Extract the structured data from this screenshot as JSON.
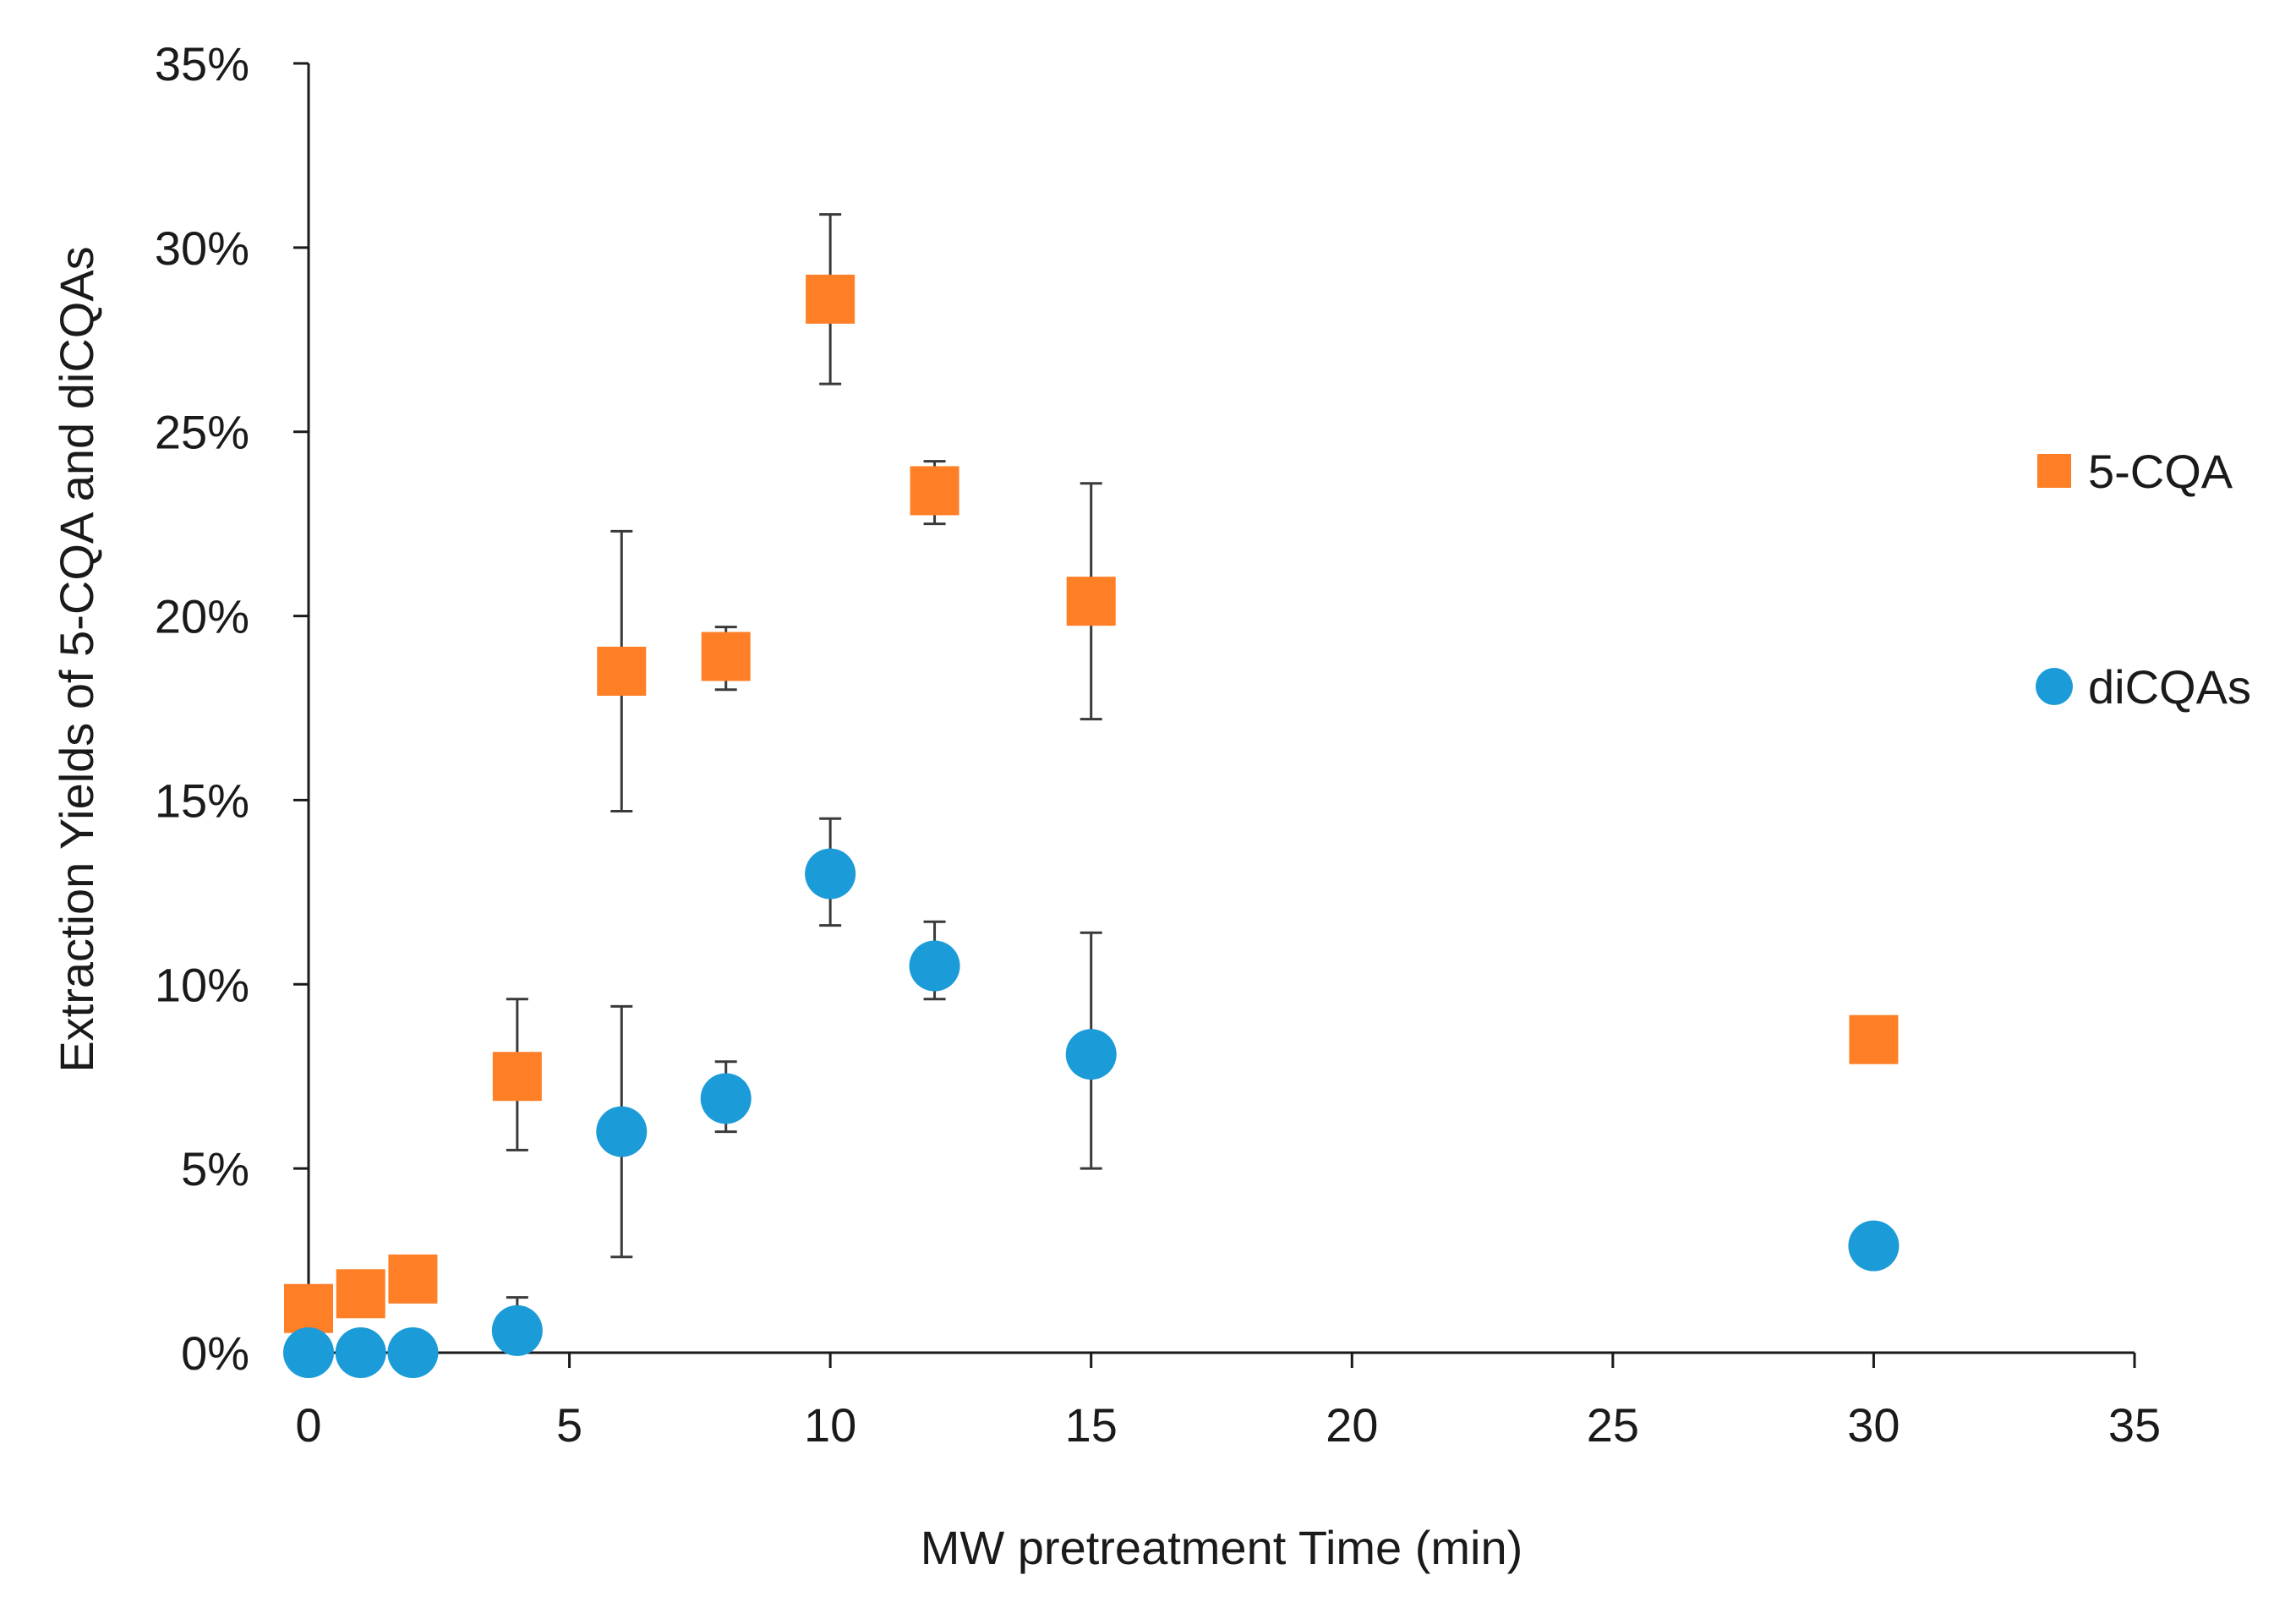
{
  "chart_data": {
    "type": "scatter",
    "title": "",
    "xlabel": "MW pretreatment Time (min)",
    "ylabel": "Extraction Yields of 5-CQA and diCQAs",
    "xlim": [
      0,
      35
    ],
    "ylim": [
      0,
      0.35
    ],
    "x_ticks": [
      0,
      5,
      10,
      15,
      20,
      25,
      30,
      35
    ],
    "y_ticks": [
      0,
      0.05,
      0.1,
      0.15,
      0.2,
      0.25,
      0.3,
      0.35
    ],
    "y_tick_labels": [
      "0%",
      "5%",
      "10%",
      "15%",
      "20%",
      "25%",
      "30%",
      "35%"
    ],
    "grid": false,
    "legend_position": "right",
    "series": [
      {
        "name": "5-CQA",
        "marker": "square",
        "color": "#FF7F27",
        "points": [
          {
            "x": 0,
            "y": 0.012,
            "err_low": null,
            "err_high": null
          },
          {
            "x": 1,
            "y": 0.016,
            "err_low": null,
            "err_high": null
          },
          {
            "x": 2,
            "y": 0.02,
            "err_low": null,
            "err_high": null
          },
          {
            "x": 4,
            "y": 0.075,
            "err_low": 0.055,
            "err_high": 0.096
          },
          {
            "x": 6,
            "y": 0.185,
            "err_low": 0.147,
            "err_high": 0.223
          },
          {
            "x": 8,
            "y": 0.189,
            "err_low": 0.18,
            "err_high": 0.197
          },
          {
            "x": 10,
            "y": 0.286,
            "err_low": 0.263,
            "err_high": 0.309
          },
          {
            "x": 12,
            "y": 0.234,
            "err_low": 0.225,
            "err_high": 0.242
          },
          {
            "x": 15,
            "y": 0.204,
            "err_low": 0.172,
            "err_high": 0.236
          },
          {
            "x": 30,
            "y": 0.085,
            "err_low": null,
            "err_high": null
          }
        ]
      },
      {
        "name": "diCQAs",
        "marker": "circle",
        "color": "#1B9BD7",
        "points": [
          {
            "x": 0,
            "y": 0.0,
            "err_low": null,
            "err_high": null
          },
          {
            "x": 1,
            "y": 0.0,
            "err_low": null,
            "err_high": null
          },
          {
            "x": 2,
            "y": 0.0,
            "err_low": null,
            "err_high": null
          },
          {
            "x": 4,
            "y": 0.006,
            "err_low": null,
            "err_high": 0.015
          },
          {
            "x": 6,
            "y": 0.06,
            "err_low": 0.026,
            "err_high": 0.094
          },
          {
            "x": 8,
            "y": 0.069,
            "err_low": 0.06,
            "err_high": 0.079
          },
          {
            "x": 10,
            "y": 0.13,
            "err_low": 0.116,
            "err_high": 0.145
          },
          {
            "x": 12,
            "y": 0.105,
            "err_low": 0.096,
            "err_high": 0.117
          },
          {
            "x": 15,
            "y": 0.081,
            "err_low": 0.05,
            "err_high": 0.114
          },
          {
            "x": 30,
            "y": 0.029,
            "err_low": null,
            "err_high": null
          }
        ]
      }
    ],
    "colors": {
      "axis": "#1a1a1a",
      "error_bar": "#3a3a3a"
    }
  }
}
